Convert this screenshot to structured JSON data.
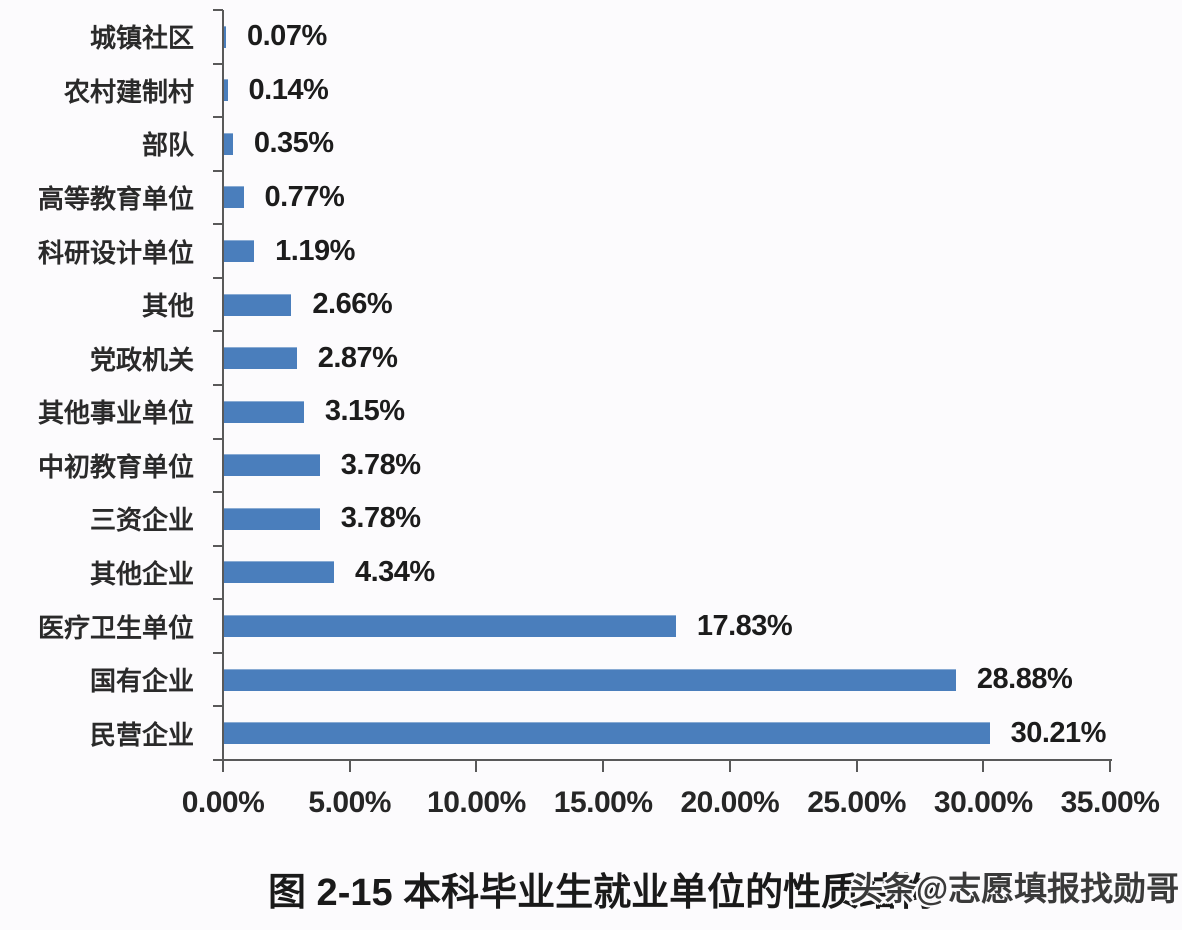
{
  "watermark": "头条@志愿填报找勋哥",
  "chart_data": {
    "type": "bar",
    "orientation": "horizontal",
    "title": "图 2-15  本科毕业生就业单位的性质结构",
    "categories": [
      "城镇社区",
      "农村建制村",
      "部队",
      "高等教育单位",
      "科研设计单位",
      "其他",
      "党政机关",
      "其他事业单位",
      "中初教育单位",
      "三资企业",
      "其他企业",
      "医疗卫生单位",
      "国有企业",
      "民营企业"
    ],
    "values": [
      0.07,
      0.14,
      0.35,
      0.77,
      1.19,
      2.66,
      2.87,
      3.15,
      3.78,
      3.78,
      4.34,
      17.83,
      28.88,
      30.21
    ],
    "value_labels": [
      "0.07%",
      "0.14%",
      "0.35%",
      "0.77%",
      "1.19%",
      "2.66%",
      "2.87%",
      "3.15%",
      "3.78%",
      "3.78%",
      "4.34%",
      "17.83%",
      "28.88%",
      "30.21%"
    ],
    "x_tick_labels": [
      "0.00%",
      "5.00%",
      "10.00%",
      "15.00%",
      "20.00%",
      "25.00%",
      "30.00%",
      "35.00%"
    ],
    "xlim": [
      0,
      35
    ],
    "bar_color": "#4a7ebc",
    "axis_color": "#595959",
    "grid": false,
    "legend": false,
    "value_label_position": "right-of-bar"
  }
}
